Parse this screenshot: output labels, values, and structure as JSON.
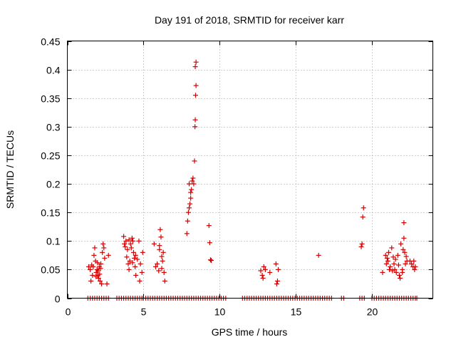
{
  "chart_data": {
    "type": "scatter",
    "title": "Day 191 of 2018, SRMTID for receiver karr",
    "xlabel": "GPS time / hours",
    "ylabel": "SRMTID / TECUs",
    "xlim": [
      0,
      24
    ],
    "ylim": [
      0,
      0.45
    ],
    "x_ticks": [
      0,
      5,
      10,
      15,
      20
    ],
    "x_tick_labels": [
      "0",
      "5",
      "10",
      "15",
      "20"
    ],
    "y_ticks": [
      0,
      0.05,
      0.1,
      0.15,
      0.2,
      0.25,
      0.3,
      0.35,
      0.4,
      0.45
    ],
    "y_tick_labels": [
      "0",
      "0.05",
      "0.1",
      "0.15",
      "0.2",
      "0.25",
      "0.3",
      "0.35",
      "0.4",
      "0.45"
    ],
    "grid": true,
    "marker": "+",
    "marker_color": "#d40000",
    "series": [
      {
        "name": "SRMTID",
        "points": [
          [
            1.4,
            0.055
          ],
          [
            1.5,
            0.05
          ],
          [
            1.55,
            0.03
          ],
          [
            1.6,
            0.058
          ],
          [
            1.65,
            0.04
          ],
          [
            1.7,
            0.055
          ],
          [
            1.75,
            0.075
          ],
          [
            1.8,
            0.088
          ],
          [
            1.85,
            0.065
          ],
          [
            1.9,
            0.045
          ],
          [
            1.95,
            0.05
          ],
          [
            2.0,
            0.04
          ],
          [
            2.05,
            0.035
          ],
          [
            2.1,
            0.055
          ],
          [
            2.15,
            0.03
          ],
          [
            2.2,
            0.06
          ],
          [
            2.25,
            0.025
          ],
          [
            2.3,
            0.08
          ],
          [
            2.35,
            0.095
          ],
          [
            2.4,
            0.088
          ],
          [
            2.45,
            0.07
          ],
          [
            2.6,
            0.025
          ],
          [
            2.7,
            0.075
          ],
          [
            1.88,
            0.038
          ],
          [
            2.02,
            0.048
          ],
          [
            2.12,
            0.042
          ],
          [
            1.98,
            0.062
          ],
          [
            2.18,
            0.052
          ],
          [
            3.7,
            0.108
          ],
          [
            3.75,
            0.095
          ],
          [
            3.8,
            0.09
          ],
          [
            3.85,
            0.1
          ],
          [
            3.9,
            0.072
          ],
          [
            3.95,
            0.085
          ],
          [
            4.0,
            0.06
          ],
          [
            4.05,
            0.05
          ],
          [
            4.1,
            0.065
          ],
          [
            4.15,
            0.095
          ],
          [
            4.2,
            0.088
          ],
          [
            4.25,
            0.105
          ],
          [
            4.3,
            0.1
          ],
          [
            4.35,
            0.08
          ],
          [
            4.4,
            0.07
          ],
          [
            4.45,
            0.055
          ],
          [
            4.5,
            0.04
          ],
          [
            4.6,
            0.068
          ],
          [
            4.7,
            0.1
          ],
          [
            4.75,
            0.03
          ],
          [
            4.8,
            0.06
          ],
          [
            4.9,
            0.045
          ],
          [
            4.95,
            0.08
          ],
          [
            4.05,
            0.102
          ],
          [
            4.28,
            0.062
          ],
          [
            4.48,
            0.075
          ],
          [
            5.7,
            0.095
          ],
          [
            5.8,
            0.055
          ],
          [
            5.9,
            0.06
          ],
          [
            6.0,
            0.048
          ],
          [
            6.05,
            0.085
          ],
          [
            6.1,
            0.12
          ],
          [
            6.15,
            0.107
          ],
          [
            6.2,
            0.073
          ],
          [
            6.25,
            0.065
          ],
          [
            6.3,
            0.08
          ],
          [
            6.35,
            0.045
          ],
          [
            6.4,
            0.03
          ],
          [
            6.2,
            0.052
          ],
          [
            6.05,
            0.092
          ],
          [
            7.85,
            0.113
          ],
          [
            7.9,
            0.135
          ],
          [
            7.95,
            0.15
          ],
          [
            8.0,
            0.158
          ],
          [
            8.05,
            0.165
          ],
          [
            8.1,
            0.175
          ],
          [
            8.15,
            0.19
          ],
          [
            8.2,
            0.205
          ],
          [
            8.25,
            0.21
          ],
          [
            8.3,
            0.2
          ],
          [
            8.35,
            0.24
          ],
          [
            8.38,
            0.3
          ],
          [
            8.4,
            0.312
          ],
          [
            8.42,
            0.355
          ],
          [
            8.45,
            0.372
          ],
          [
            8.4,
            0.405
          ],
          [
            8.45,
            0.413
          ],
          [
            8.0,
            0.2
          ],
          [
            8.1,
            0.185
          ],
          [
            9.3,
            0.127
          ],
          [
            9.35,
            0.097
          ],
          [
            9.4,
            0.067
          ],
          [
            9.45,
            0.066
          ],
          [
            12.7,
            0.048
          ],
          [
            12.8,
            0.04
          ],
          [
            12.85,
            0.035
          ],
          [
            12.9,
            0.055
          ],
          [
            13.0,
            0.05
          ],
          [
            13.3,
            0.045
          ],
          [
            13.7,
            0.06
          ],
          [
            13.75,
            0.025
          ],
          [
            13.8,
            0.03
          ],
          [
            13.85,
            0.05
          ],
          [
            16.5,
            0.075
          ],
          [
            19.3,
            0.09
          ],
          [
            19.35,
            0.095
          ],
          [
            19.4,
            0.142
          ],
          [
            19.45,
            0.158
          ],
          [
            20.7,
            0.045
          ],
          [
            20.9,
            0.075
          ],
          [
            20.95,
            0.06
          ],
          [
            21.0,
            0.07
          ],
          [
            21.05,
            0.065
          ],
          [
            21.1,
            0.08
          ],
          [
            21.15,
            0.05
          ],
          [
            21.2,
            0.055
          ],
          [
            21.3,
            0.088
          ],
          [
            21.35,
            0.048
          ],
          [
            21.4,
            0.072
          ],
          [
            21.45,
            0.06
          ],
          [
            21.5,
            0.05
          ],
          [
            21.55,
            0.068
          ],
          [
            21.6,
            0.045
          ],
          [
            21.7,
            0.075
          ],
          [
            21.75,
            0.058
          ],
          [
            21.8,
            0.04
          ],
          [
            21.85,
            0.035
          ],
          [
            21.9,
            0.095
          ],
          [
            22.0,
            0.05
          ],
          [
            22.05,
            0.085
          ],
          [
            22.1,
            0.105
          ],
          [
            22.15,
            0.08
          ],
          [
            22.2,
            0.06
          ],
          [
            22.25,
            0.073
          ],
          [
            22.1,
            0.132
          ],
          [
            22.0,
            0.045
          ],
          [
            22.3,
            0.065
          ],
          [
            22.5,
            0.065
          ],
          [
            22.6,
            0.06
          ],
          [
            22.7,
            0.055
          ],
          [
            22.75,
            0.065
          ],
          [
            22.8,
            0.05
          ],
          [
            22.85,
            0.055
          ]
        ],
        "zero_points": [
          1.35,
          1.5,
          1.65,
          1.8,
          1.95,
          2.1,
          2.25,
          2.4,
          2.55,
          2.7,
          3.25,
          3.4,
          3.55,
          3.7,
          3.85,
          4.0,
          4.15,
          4.3,
          4.45,
          4.6,
          4.75,
          4.9,
          5.0,
          5.15,
          5.3,
          5.45,
          5.6,
          5.75,
          5.9,
          6.05,
          6.2,
          6.35,
          6.5,
          6.65,
          6.8,
          6.95,
          7.1,
          7.25,
          7.4,
          7.55,
          7.7,
          7.85,
          8.0,
          8.15,
          8.3,
          8.45,
          8.6,
          8.75,
          8.9,
          9.05,
          9.2,
          9.35,
          9.5,
          9.65,
          9.8,
          9.95,
          10.1,
          10.25,
          10.4,
          11.5,
          11.65,
          11.8,
          11.95,
          12.1,
          12.25,
          12.4,
          12.55,
          12.7,
          12.85,
          13.0,
          13.15,
          13.3,
          13.45,
          13.6,
          13.75,
          13.9,
          14.05,
          14.2,
          14.35,
          14.5,
          14.65,
          14.8,
          14.95,
          15.1,
          15.25,
          15.4,
          15.55,
          15.7,
          15.85,
          16.0,
          16.15,
          16.3,
          16.45,
          16.6,
          16.75,
          16.9,
          17.05,
          17.2,
          17.35,
          18.0,
          18.15,
          19.2,
          19.35,
          19.5,
          20.0,
          20.15,
          20.3,
          20.45,
          20.6,
          20.75,
          20.9,
          21.05,
          21.2,
          21.35,
          21.5,
          21.65,
          21.8,
          21.95,
          22.1,
          22.25,
          22.4,
          22.55,
          22.7,
          22.85,
          22.95
        ]
      }
    ]
  }
}
